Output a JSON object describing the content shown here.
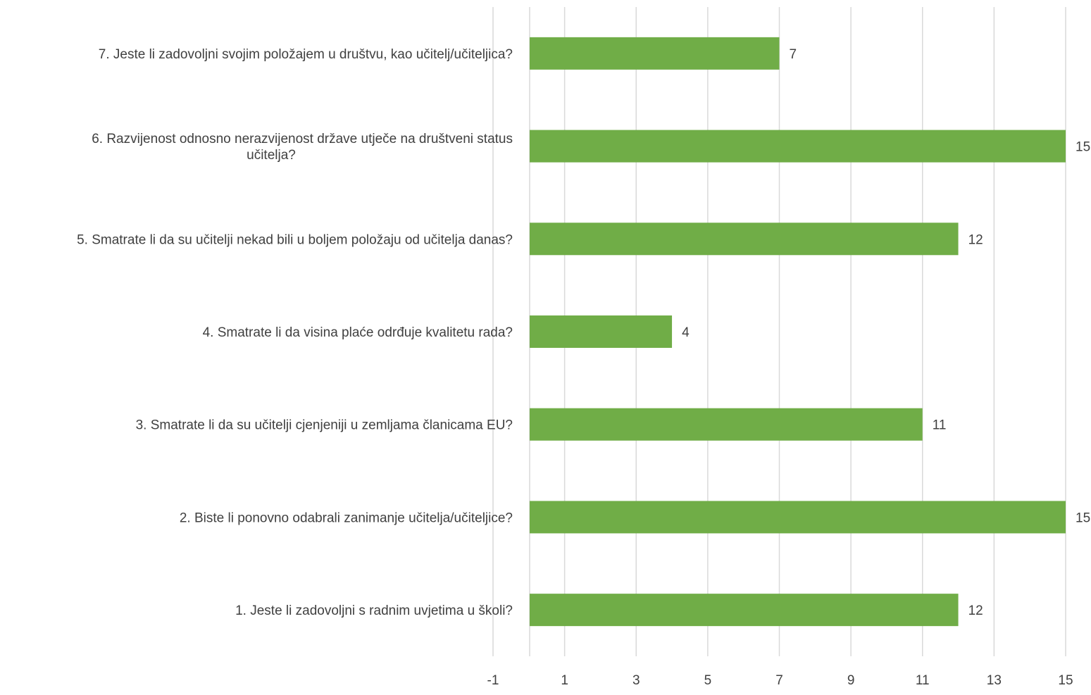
{
  "chart_data": {
    "type": "bar",
    "orientation": "horizontal",
    "categories": [
      "1. Jeste li zadovoljni s radnim uvjetima u školi?",
      "2. Biste li ponovno odabrali zanimanje učitelja/učiteljice?",
      "3. Smatrate li da su učitelji cjenjeniji u zemljama članicama EU?",
      "4. Smatrate li da visina plaće odrđuje kvalitetu rada?",
      "5. Smatrate li da su učitelji nekad bili u boljem položaju od učitelja danas?",
      "6. Razvijenost odnosno nerazvijenost države utječe na društveni status učitelja?",
      "7. Jeste li zadovoljni svojim položajem u društvu, kao učitelj/učiteljica?"
    ],
    "category_label_lines": [
      [
        "1. Jeste li zadovoljni s radnim uvjetima u školi?"
      ],
      [
        "2. Biste li ponovno odabrali zanimanje učitelja/učiteljice?"
      ],
      [
        "3. Smatrate li da su učitelji cjenjeniji u zemljama članicama EU?"
      ],
      [
        "4. Smatrate li da visina plaće odrđuje kvalitetu rada?"
      ],
      [
        "5. Smatrate li da su učitelji nekad bili u boljem položaju od učitelja danas?"
      ],
      [
        "6. Razvijenost odnosno nerazvijenost države utječe na društveni status",
        "učitelja?"
      ],
      [
        "7. Jeste li zadovoljni svojim položajem u društvu, kao učitelj/učiteljica?"
      ]
    ],
    "values": [
      12,
      15,
      11,
      4,
      12,
      15,
      7
    ],
    "data_labels": [
      "12",
      "15",
      "11",
      "4",
      "12",
      "15",
      "7"
    ],
    "title": "",
    "xlabel": "",
    "ylabel": "",
    "xlim": [
      -1,
      15
    ],
    "x_ticks": [
      -1,
      1,
      3,
      5,
      7,
      9,
      11,
      13,
      15
    ],
    "x_tick_labels": [
      "-1",
      "1",
      "3",
      "5",
      "7",
      "9",
      "11",
      "13",
      "15"
    ],
    "grid": true,
    "legend": "none",
    "bar_color": "#70ad47",
    "grid_color": "#d9d9d9",
    "text_color": "#404040"
  }
}
